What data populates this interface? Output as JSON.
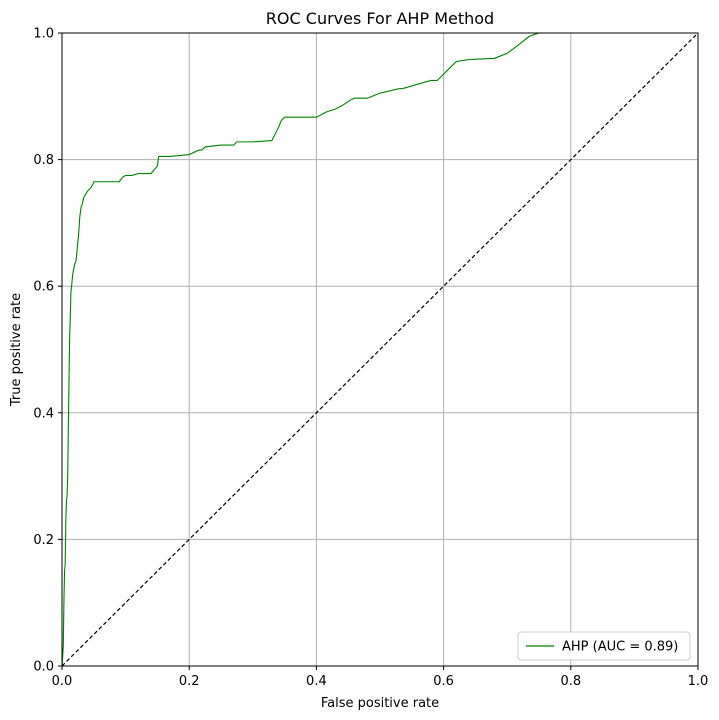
{
  "chart_data": {
    "type": "line",
    "title": "ROC Curves For AHP Method",
    "xlabel": "False positive rate",
    "ylabel": "True positive rate",
    "xlim": [
      0.0,
      1.0
    ],
    "ylim": [
      0.0,
      1.0
    ],
    "xticks": [
      "0.0",
      "0.2",
      "0.4",
      "0.6",
      "0.8",
      "1.0"
    ],
    "yticks": [
      "0.0",
      "0.2",
      "0.4",
      "0.6",
      "0.8",
      "1.0"
    ],
    "grid": true,
    "legend_position": "lower-right",
    "series": [
      {
        "name": "AHP (AUC = 0.89)",
        "color": "#008000",
        "style": "solid",
        "x": [
          0.0,
          0.002,
          0.003,
          0.004,
          0.005,
          0.006,
          0.007,
          0.008,
          0.009,
          0.01,
          0.011,
          0.012,
          0.013,
          0.014,
          0.015,
          0.016,
          0.017,
          0.018,
          0.019,
          0.02,
          0.022,
          0.024,
          0.026,
          0.028,
          0.03,
          0.032,
          0.034,
          0.037,
          0.04,
          0.045,
          0.048,
          0.05,
          0.055,
          0.06,
          0.07,
          0.08,
          0.09,
          0.095,
          0.1,
          0.11,
          0.12,
          0.13,
          0.14,
          0.15,
          0.152,
          0.17,
          0.2,
          0.215,
          0.22,
          0.225,
          0.25,
          0.27,
          0.275,
          0.3,
          0.33,
          0.34,
          0.345,
          0.35,
          0.4,
          0.415,
          0.43,
          0.44,
          0.455,
          0.46,
          0.48,
          0.5,
          0.53,
          0.535,
          0.58,
          0.59,
          0.6,
          0.61,
          0.62,
          0.64,
          0.68,
          0.7,
          0.72,
          0.735,
          0.75,
          1.0
        ],
        "y": [
          0.0,
          0.03,
          0.1,
          0.15,
          0.16,
          0.23,
          0.26,
          0.27,
          0.3,
          0.38,
          0.45,
          0.52,
          0.55,
          0.59,
          0.6,
          0.61,
          0.62,
          0.625,
          0.63,
          0.635,
          0.64,
          0.66,
          0.68,
          0.71,
          0.725,
          0.73,
          0.74,
          0.745,
          0.75,
          0.755,
          0.76,
          0.765,
          0.765,
          0.765,
          0.765,
          0.765,
          0.765,
          0.772,
          0.775,
          0.775,
          0.778,
          0.778,
          0.778,
          0.79,
          0.805,
          0.805,
          0.808,
          0.815,
          0.815,
          0.82,
          0.823,
          0.823,
          0.828,
          0.828,
          0.83,
          0.85,
          0.862,
          0.867,
          0.867,
          0.875,
          0.88,
          0.885,
          0.895,
          0.897,
          0.897,
          0.905,
          0.912,
          0.912,
          0.925,
          0.925,
          0.935,
          0.945,
          0.955,
          0.958,
          0.96,
          0.968,
          0.983,
          0.995,
          1.0,
          1.0
        ]
      },
      {
        "name": "",
        "color": "#000000",
        "style": "dashed",
        "x": [
          0.0,
          1.0
        ],
        "y": [
          0.0,
          1.0
        ]
      }
    ]
  }
}
